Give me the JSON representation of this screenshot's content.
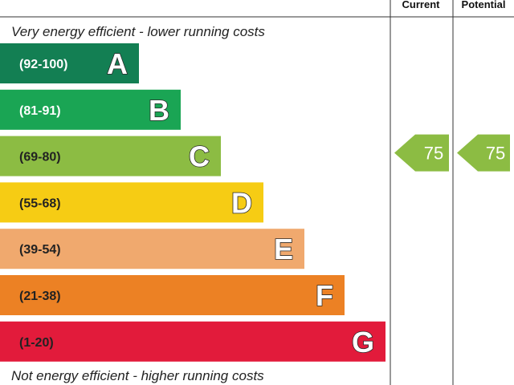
{
  "columns": {
    "current": "Current",
    "potential": "Potential"
  },
  "top_caption": "Very energy efficient - lower running costs",
  "bottom_caption": "Not energy efficient - higher running costs",
  "chart_data": {
    "type": "bar",
    "categories": [
      "A",
      "B",
      "C",
      "D",
      "E",
      "F",
      "G"
    ],
    "ranges": [
      "(92-100)",
      "(81-91)",
      "(69-80)",
      "(55-68)",
      "(39-54)",
      "(21-38)",
      "(1-20)"
    ],
    "colors": [
      "#137f53",
      "#1aa554",
      "#8cbc43",
      "#f6cc14",
      "#f0a96e",
      "#ec8124",
      "#e21b3b"
    ],
    "range_label_colors": [
      "#ffffff",
      "#ffffff",
      "#222222",
      "#222222",
      "#222222",
      "#222222",
      "#222222"
    ],
    "current": 75,
    "potential": 75,
    "current_band": "C",
    "potential_band": "C",
    "arrow_color": "#8cbc43"
  }
}
